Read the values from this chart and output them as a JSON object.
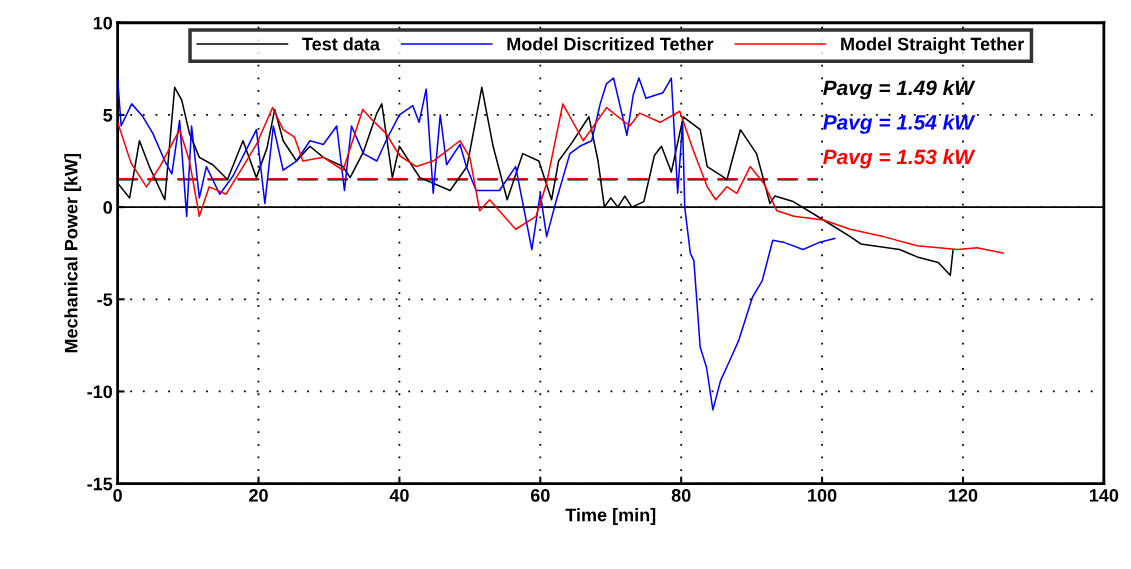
{
  "chart_data": {
    "type": "line",
    "xlabel": "Time [min]",
    "ylabel": "Mechanical Power [kW]",
    "xlim": [
      0,
      140
    ],
    "ylim": [
      -15,
      10
    ],
    "xticks": [
      0,
      20,
      40,
      60,
      80,
      100,
      120,
      140
    ],
    "yticks": [
      -15,
      -10,
      -5,
      0,
      5,
      10
    ],
    "grid": true,
    "legend": "top",
    "line_style": "solid",
    "marker": "none",
    "series": [
      {
        "name": "Test data",
        "color": "#000000",
        "x": [
          0,
          1.7,
          3.1,
          4.5,
          6.7,
          8.1,
          9.1,
          10.2,
          11.6,
          13.5,
          15.6,
          17.8,
          19.7,
          21.2,
          22.3,
          23.5,
          25.4,
          27.3,
          29.2,
          32,
          33,
          34.9,
          36.8,
          37.5,
          39,
          40,
          42.9,
          47.2,
          49.6,
          51.7,
          53.3,
          55.3,
          57.5,
          59.8,
          61.6,
          62.6,
          64.5,
          66.9,
          68.2,
          69.1,
          70,
          71,
          72,
          73,
          74.7,
          76.2,
          77.2,
          78.6,
          80.3,
          82.7,
          83.7,
          86.5,
          88.4,
          90.7,
          92.6,
          93.3,
          95.9,
          100.2,
          104,
          105.5,
          111,
          113.5,
          116.5,
          118.2,
          118.6
        ],
        "values": [
          1.3,
          0.5,
          3.6,
          2.2,
          0.4,
          6.5,
          5.8,
          4.0,
          2.7,
          2.3,
          1.5,
          3.6,
          1.6,
          3.2,
          5.3,
          3.6,
          2.5,
          3.3,
          2.7,
          2.2,
          1.6,
          3.0,
          5.1,
          5.6,
          1.6,
          3.3,
          1.6,
          0.9,
          2.2,
          6.5,
          3.3,
          0.4,
          2.9,
          2.5,
          0.4,
          2.5,
          3.5,
          4.9,
          2.5,
          0.0,
          0.5,
          0.0,
          0.6,
          0.0,
          0.3,
          2.8,
          3.3,
          1.9,
          4.9,
          4.2,
          2.2,
          1.5,
          4.2,
          2.9,
          0.2,
          0.6,
          0.3,
          -0.7,
          -1.6,
          -2.0,
          -2.3,
          -2.7,
          -3.0,
          -3.7,
          -2.3
        ]
      },
      {
        "name": "Model Discritized Tether",
        "color": "#0000ff",
        "x": [
          0,
          0.5,
          2,
          3.6,
          5,
          6.7,
          7.7,
          8.8,
          9.8,
          10.5,
          11.6,
          12.6,
          14.5,
          16.4,
          19.7,
          20.9,
          22.1,
          23.5,
          25.4,
          27.3,
          29.2,
          31.1,
          32.2,
          33.2,
          34.9,
          36.8,
          38.1,
          40,
          41.9,
          42.8,
          43.8,
          44.8,
          45.8,
          46.7,
          48.6,
          49.5,
          50.9,
          54.2,
          56.5,
          58.8,
          60,
          60.9,
          62.3,
          64.2,
          65.6,
          67.3,
          68.5,
          69.4,
          70.4,
          72.3,
          73.2,
          74,
          75,
          77.4,
          78.6,
          79.5,
          80.2,
          80.5,
          81.3,
          81.8,
          82.7,
          83.6,
          84.5,
          85.6,
          86.8,
          88.2,
          90.1,
          91.5,
          93,
          94.5,
          97.3,
          99.7,
          101.8
        ],
        "values": [
          7.0,
          4.4,
          5.6,
          4.9,
          4.0,
          2.5,
          1.8,
          4.7,
          -0.5,
          4.4,
          0.5,
          2.2,
          0.7,
          1.7,
          4.2,
          0.2,
          4.4,
          2.0,
          2.5,
          3.6,
          3.4,
          4.4,
          0.9,
          4.4,
          2.9,
          2.5,
          3.6,
          5.0,
          5.5,
          4.6,
          6.4,
          0.75,
          5.0,
          2.3,
          3.4,
          2.2,
          0.9,
          0.9,
          2.2,
          -2.3,
          0.75,
          -1.6,
          0.4,
          2.9,
          3.3,
          3.6,
          5.6,
          6.7,
          7.0,
          3.9,
          6.1,
          7.0,
          5.9,
          6.2,
          7.0,
          0.75,
          4.6,
          0.0,
          -2.5,
          -2.9,
          -7.6,
          -8.7,
          -11.0,
          -9.4,
          -8.4,
          -7.2,
          -4.9,
          -4.0,
          -1.8,
          -1.9,
          -2.3,
          -1.9,
          -1.7
        ]
      },
      {
        "name": "Model Straight Tether",
        "color": "#ff0000",
        "x": [
          0,
          1.9,
          4.1,
          6,
          8.8,
          10.2,
          11.6,
          13,
          15.4,
          17.8,
          19.7,
          22,
          23.5,
          25.1,
          26.3,
          29.2,
          32,
          34.8,
          36.2,
          38.1,
          40,
          42.4,
          44.8,
          48.6,
          50,
          51.4,
          52.8,
          56.5,
          59.4,
          60.9,
          63.2,
          66.1,
          69.4,
          72.7,
          74.1,
          77,
          79.8,
          81.7,
          83.7,
          84.9,
          86.5,
          87.9,
          89.8,
          91.7,
          93.6,
          96,
          100.2,
          104,
          108.7,
          113.5,
          119.2,
          122,
          125.7
        ],
        "values": [
          4.6,
          2.4,
          1.1,
          2.2,
          4.2,
          2.5,
          -0.5,
          1.1,
          0.7,
          2.2,
          3.4,
          5.4,
          4.2,
          3.8,
          2.5,
          2.7,
          2.0,
          5.3,
          4.7,
          4.0,
          2.8,
          2.2,
          2.5,
          3.6,
          2.7,
          -0.2,
          0.4,
          -1.2,
          -0.5,
          1.3,
          5.6,
          3.6,
          5.4,
          4.4,
          5.1,
          4.6,
          5.2,
          3.1,
          1.1,
          0.4,
          1.1,
          0.75,
          2.2,
          1.3,
          -0.2,
          -0.5,
          -0.7,
          -1.2,
          -1.6,
          -2.1,
          -2.3,
          -2.2,
          -2.5
        ]
      }
    ],
    "ref_lines": [
      {
        "axis": "y",
        "value": 0,
        "color": "#000000",
        "line_style": "solid"
      },
      {
        "axis": "y",
        "value": 1.49,
        "color": "#000000",
        "line_style": "dashed"
      },
      {
        "axis": "y",
        "value": 1.54,
        "color": "#0000ff",
        "line_style": "dashed"
      },
      {
        "axis": "y",
        "value": 1.53,
        "color": "#ff0000",
        "line_style": "dashed"
      }
    ],
    "annotations": [
      "Pavg = 1.49 kW",
      "Pavg = 1.54 kW",
      "Pavg = 1.53 kW"
    ]
  }
}
